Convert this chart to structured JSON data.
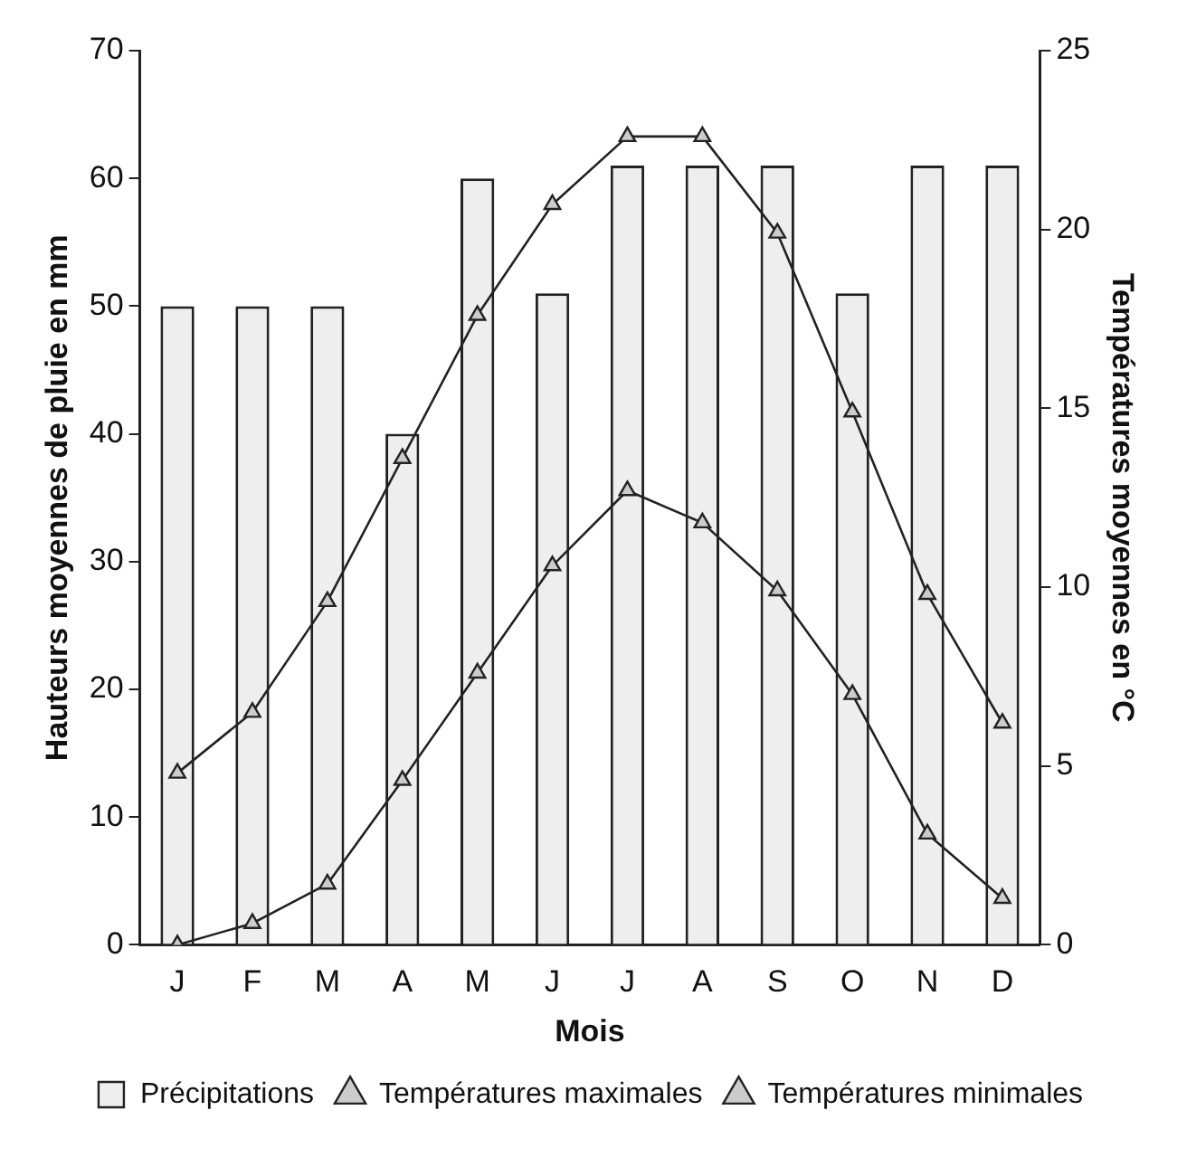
{
  "chart_data": {
    "type": "bar",
    "xlabel": "Mois",
    "ylabel": "Hauteurs moyennes de pluie en mm",
    "y2label": "Températures moyennes en °C",
    "categories": [
      "J",
      "F",
      "M",
      "A",
      "M",
      "J",
      "J",
      "A",
      "S",
      "O",
      "N",
      "D"
    ],
    "series": [
      {
        "name": "Précipitations",
        "color": "#eeeeee",
        "values": [
          50,
          50,
          50,
          40,
          60,
          51,
          61,
          61,
          61,
          51,
          61,
          61
        ]
      },
      {
        "name": "Températures maximales",
        "type": "line",
        "axis": "y2",
        "color": "#222222",
        "values": [
          4.8,
          6.5,
          9.6,
          13.6,
          17.6,
          20.7,
          22.6,
          22.6,
          19.9,
          14.9,
          9.8,
          6.2
        ]
      },
      {
        "name": "Températures minimales",
        "type": "line",
        "axis": "y2",
        "color": "#222222",
        "values": [
          0,
          0.6,
          1.7,
          4.6,
          7.6,
          10.6,
          12.7,
          11.8,
          9.9,
          7.0,
          3.1,
          1.3
        ]
      }
    ],
    "ylim": [
      0,
      70
    ],
    "yticks": [
      0,
      10,
      20,
      30,
      40,
      50,
      60,
      70
    ],
    "y2lim": [
      0,
      25
    ],
    "y2ticks": [
      0,
      5,
      10,
      15,
      20,
      25
    ],
    "marker": "triangle",
    "legend": "bottom",
    "grid": false
  }
}
